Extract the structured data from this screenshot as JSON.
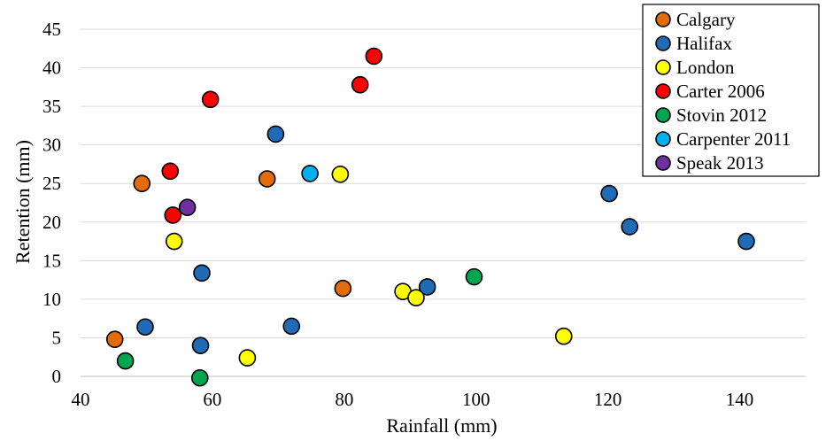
{
  "chart_data": {
    "type": "scatter",
    "xlabel": "Rainfall (mm)",
    "ylabel": "Retention (mm)",
    "xlim": [
      40,
      150
    ],
    "ylim": [
      0,
      45
    ],
    "x_ticks": [
      40,
      60,
      80,
      100,
      120,
      140
    ],
    "y_ticks": [
      0,
      5,
      10,
      15,
      20,
      25,
      30,
      35,
      40,
      45
    ],
    "grid": "horizontal",
    "legend_position": "top-right",
    "series": [
      {
        "name": "Calgary",
        "color": "#E36C0A",
        "points": [
          [
            45.2,
            4.8
          ],
          [
            49.3,
            25.0
          ],
          [
            68.3,
            25.6
          ],
          [
            79.8,
            11.4
          ]
        ]
      },
      {
        "name": "Halifax",
        "color": "#1F6BB5",
        "points": [
          [
            49.8,
            6.4
          ],
          [
            58.2,
            4.0
          ],
          [
            58.4,
            13.4
          ],
          [
            69.6,
            31.4
          ],
          [
            72.0,
            6.5
          ],
          [
            92.6,
            11.6
          ],
          [
            120.2,
            23.7
          ],
          [
            123.3,
            19.4
          ],
          [
            141.0,
            17.5
          ]
        ]
      },
      {
        "name": "London",
        "color": "#FFFF00",
        "points": [
          [
            54.2,
            17.5
          ],
          [
            65.3,
            2.4
          ],
          [
            79.4,
            26.2
          ],
          [
            88.9,
            11.0
          ],
          [
            90.9,
            10.2
          ],
          [
            113.3,
            5.2
          ]
        ]
      },
      {
        "name": "Carter 2006",
        "color": "#FF0000",
        "points": [
          [
            53.6,
            26.6
          ],
          [
            54.0,
            20.9
          ],
          [
            59.7,
            35.9
          ],
          [
            82.4,
            37.8
          ],
          [
            84.5,
            41.5
          ]
        ]
      },
      {
        "name": "Stovin 2012",
        "color": "#00A550",
        "points": [
          [
            46.8,
            2.0
          ],
          [
            58.1,
            -0.2
          ],
          [
            99.7,
            12.9
          ]
        ]
      },
      {
        "name": "Carpenter 2011",
        "color": "#00B0F0",
        "points": [
          [
            74.8,
            26.3
          ]
        ]
      },
      {
        "name": "Speak 2013",
        "color": "#7030A0",
        "points": [
          [
            56.2,
            21.9
          ]
        ]
      }
    ]
  }
}
